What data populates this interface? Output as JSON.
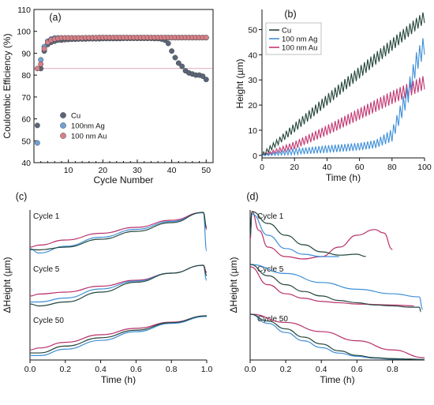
{
  "colors": {
    "cu": "#24463c",
    "ag": "#3f8fd8",
    "au": "#b8306a"
  },
  "chart_data": [
    {
      "id": "a",
      "type": "scatter",
      "panel_label": "(a)",
      "xlabel": "Cycle Number",
      "ylabel": "Coulombic Efficiency (%)",
      "xlim": [
        0,
        52
      ],
      "ylim": [
        40,
        110
      ],
      "xticks": [
        10,
        20,
        30,
        40,
        50
      ],
      "yticks": [
        40,
        50,
        60,
        70,
        80,
        90,
        100,
        110
      ],
      "legend_position": "bottom-left",
      "series": [
        {
          "name": "Cu",
          "color": "#5a6678",
          "x": [
            1,
            2,
            3,
            4,
            5,
            6,
            7,
            8,
            9,
            10,
            11,
            12,
            13,
            14,
            15,
            16,
            17,
            18,
            19,
            20,
            21,
            22,
            23,
            24,
            25,
            26,
            27,
            28,
            29,
            30,
            31,
            32,
            33,
            34,
            35,
            36,
            37,
            38,
            39,
            40,
            41,
            42,
            43,
            44,
            45,
            46,
            47,
            48,
            49,
            50
          ],
          "y": [
            57,
            83,
            91,
            94,
            95,
            95.5,
            96,
            96,
            96.2,
            96.3,
            96.4,
            96.4,
            96.5,
            96.5,
            96.5,
            96.6,
            96.6,
            96.6,
            96.6,
            96.7,
            96.7,
            96.7,
            96.7,
            96.7,
            96.7,
            96.8,
            96.8,
            96.8,
            96.8,
            96.8,
            96.8,
            96.8,
            96.8,
            96.8,
            96.7,
            96.7,
            96.5,
            96,
            94.5,
            91,
            88,
            85.5,
            84,
            82,
            81,
            80.5,
            80,
            80,
            79.5,
            78
          ]
        },
        {
          "name": "100nm Ag",
          "color": "#6fa3d8",
          "x": [
            1,
            2,
            3,
            4,
            5,
            6,
            7,
            8,
            9,
            10,
            11,
            12,
            13,
            14,
            15,
            16,
            17,
            18,
            19,
            20,
            21,
            22,
            23,
            24,
            25,
            26,
            27,
            28,
            29,
            30,
            31,
            32,
            33,
            34,
            35,
            36,
            37,
            38,
            39,
            40,
            41,
            42,
            43,
            44,
            45,
            46,
            47,
            48,
            49,
            50
          ],
          "y": [
            49,
            87,
            93,
            95.5,
            96.5,
            97,
            97,
            97,
            97,
            97,
            97,
            97,
            97,
            97,
            97,
            97,
            97.1,
            97.1,
            97.1,
            97.1,
            97.1,
            97.1,
            97.1,
            97.1,
            97.1,
            97.1,
            97.1,
            97.1,
            97.1,
            97.1,
            97.1,
            97.1,
            97.1,
            97.1,
            97.1,
            97.1,
            97.1,
            97.1,
            97.1,
            97.1,
            97.1,
            97.1,
            97.1,
            97.1,
            97.1,
            97.1,
            97.1,
            97.1,
            97.1,
            97.1
          ]
        },
        {
          "name": "100 nm Au",
          "color": "#d87f88",
          "x": [
            1,
            2,
            3,
            4,
            5,
            6,
            7,
            8,
            9,
            10,
            11,
            12,
            13,
            14,
            15,
            16,
            17,
            18,
            19,
            20,
            21,
            22,
            23,
            24,
            25,
            26,
            27,
            28,
            29,
            30,
            31,
            32,
            33,
            34,
            35,
            36,
            37,
            38,
            39,
            40,
            41,
            42,
            43,
            44,
            45,
            46,
            47,
            48,
            49,
            50
          ],
          "y": [
            83,
            85,
            92,
            95,
            96,
            96.5,
            96.8,
            97,
            97,
            97,
            97,
            97,
            97,
            97,
            97.1,
            97.1,
            97.1,
            97.1,
            97.2,
            97.2,
            97.2,
            97.2,
            97.2,
            97.2,
            97.2,
            97.2,
            97.2,
            97.2,
            97.2,
            97.2,
            97.2,
            97.2,
            97.2,
            97.2,
            97.2,
            97.2,
            97.2,
            97.2,
            97.2,
            97.2,
            97.2,
            97.2,
            97.2,
            97.2,
            97.2,
            97.2,
            97.2,
            97.2,
            97.2,
            97.2
          ]
        }
      ]
    },
    {
      "id": "b",
      "type": "line",
      "panel_label": "(b)",
      "xlabel": "Time (h)",
      "ylabel": "Height (µm)",
      "xlim": [
        0,
        100
      ],
      "ylim": [
        -1,
        58
      ],
      "xticks": [
        0,
        20,
        40,
        60,
        80,
        100
      ],
      "yticks": [
        0,
        10,
        20,
        30,
        40,
        50
      ],
      "legend_position": "top-left",
      "series": [
        {
          "name": "Cu",
          "color": "#24463c",
          "period": 2,
          "x": [
            0,
            20,
            40,
            60,
            80,
            100
          ],
          "mid": [
            0,
            11,
            22,
            33,
            44,
            55
          ],
          "amp": [
            0.8,
            1.8,
            2.2,
            2.4,
            2.4,
            2.4
          ]
        },
        {
          "name": "100 nm Ag",
          "color": "#3f8fd8",
          "period": 2,
          "x": [
            0,
            20,
            40,
            60,
            70,
            80,
            90,
            95,
            100
          ],
          "mid": [
            0,
            1.5,
            2.5,
            3.5,
            4.5,
            8,
            25,
            37,
            44
          ],
          "amp": [
            0.2,
            1.2,
            1.5,
            1.5,
            1.6,
            2.5,
            4,
            4,
            4
          ]
        },
        {
          "name": "100 nm Au",
          "color": "#c23873",
          "period": 2,
          "x": [
            0,
            20,
            40,
            60,
            80,
            100
          ],
          "mid": [
            0,
            4,
            10,
            16.5,
            23,
            29
          ],
          "amp": [
            0.2,
            1.5,
            2,
            2.3,
            2.6,
            2.8
          ]
        }
      ]
    },
    {
      "id": "c",
      "type": "line",
      "panel_label": "(c)",
      "xlabel": "Time (h)",
      "ylabel": "ΔHeight (µm)",
      "xlim": [
        0,
        1
      ],
      "xticks": [
        0.0,
        0.2,
        0.4,
        0.6,
        0.8,
        1.0
      ],
      "subplots": [
        {
          "label": "Cycle 1",
          "series": [
            {
              "name": "Cu",
              "x": [
                0,
                0.05,
                0.2,
                0.4,
                0.6,
                0.8,
                0.98,
                1.0
              ],
              "y": [
                0.04,
                0.03,
                0.1,
                0.3,
                0.5,
                0.72,
                0.98,
                0.6
              ]
            },
            {
              "name": "100 nm Ag",
              "x": [
                0,
                0.05,
                0.2,
                0.4,
                0.6,
                0.8,
                0.98,
                1.0
              ],
              "y": [
                0.06,
                -0.05,
                0.12,
                0.35,
                0.55,
                0.75,
                0.97,
                0.0
              ]
            },
            {
              "name": "100 nm Au",
              "x": [
                0,
                0.05,
                0.2,
                0.4,
                0.6,
                0.8,
                0.98,
                1.0
              ],
              "y": [
                0.1,
                0.15,
                0.28,
                0.45,
                0.6,
                0.78,
                0.98,
                0.55
              ]
            }
          ]
        },
        {
          "label": "Cycle 5",
          "series": [
            {
              "name": "Cu",
              "x": [
                0,
                0.05,
                0.2,
                0.4,
                0.6,
                0.8,
                0.98,
                1.0
              ],
              "y": [
                0.0,
                -0.05,
                0.05,
                0.3,
                0.55,
                0.78,
                0.98,
                0.72
              ]
            },
            {
              "name": "100 nm Ag",
              "x": [
                0,
                0.05,
                0.2,
                0.4,
                0.6,
                0.8,
                0.98,
                1.0
              ],
              "y": [
                0.05,
                0.05,
                0.15,
                0.38,
                0.58,
                0.78,
                0.98,
                0.6
              ]
            },
            {
              "name": "100 nm Au",
              "x": [
                0,
                0.05,
                0.2,
                0.4,
                0.6,
                0.8,
                0.98,
                1.0
              ],
              "y": [
                0.2,
                0.25,
                0.3,
                0.45,
                0.6,
                0.78,
                0.98,
                0.8
              ]
            }
          ]
        },
        {
          "label": "Cycle 50",
          "series": [
            {
              "name": "Cu",
              "x": [
                0,
                0.05,
                0.2,
                0.4,
                0.6,
                0.8,
                1.0
              ],
              "y": [
                0.02,
                0.02,
                0.2,
                0.42,
                0.62,
                0.82,
                1.0
              ]
            },
            {
              "name": "100 nm Ag",
              "x": [
                0,
                0.05,
                0.2,
                0.4,
                0.6,
                0.8,
                1.0
              ],
              "y": [
                -0.05,
                -0.05,
                0.12,
                0.35,
                0.58,
                0.8,
                0.98
              ]
            },
            {
              "name": "100 nm Au",
              "x": [
                0,
                0.05,
                0.2,
                0.4,
                0.6,
                0.8,
                1.0
              ],
              "y": [
                0.1,
                0.15,
                0.3,
                0.5,
                0.67,
                0.83,
                1.0
              ]
            }
          ]
        }
      ]
    },
    {
      "id": "d",
      "type": "line",
      "panel_label": "(d)",
      "xlabel": "Time (h)",
      "ylabel": "ΔHeight (µm)",
      "xlim": [
        0,
        0.98
      ],
      "xticks": [
        0.0,
        0.2,
        0.4,
        0.6,
        0.8
      ],
      "subplots": [
        {
          "label": "Cycle 1",
          "series": [
            {
              "name": "Cu",
              "x": [
                0,
                0.01,
                0.1,
                0.2,
                0.3,
                0.4,
                0.5,
                0.6,
                0.65
              ],
              "y": [
                0.5,
                1.0,
                0.75,
                0.5,
                0.3,
                0.15,
                0.08,
                0.1,
                0.05
              ]
            },
            {
              "name": "100 nm Ag",
              "x": [
                0,
                0.01,
                0.1,
                0.2,
                0.3,
                0.4,
                0.5
              ],
              "y": [
                0.5,
                0.95,
                0.5,
                0.22,
                0.1,
                0.05,
                0.05
              ]
            },
            {
              "name": "100 nm Au",
              "x": [
                0,
                0.01,
                0.05,
                0.1,
                0.2,
                0.3,
                0.4,
                0.5,
                0.6,
                0.7,
                0.75,
                0.8
              ],
              "y": [
                0.4,
                1.0,
                0.6,
                0.25,
                0.05,
                0.0,
                0.05,
                0.25,
                0.5,
                0.62,
                0.55,
                0.2
              ]
            }
          ]
        },
        {
          "label": "Cycle 5",
          "series": [
            {
              "name": "Cu",
              "x": [
                0,
                0.1,
                0.2,
                0.3,
                0.4,
                0.5,
                0.6,
                0.7,
                0.8,
                0.9,
                0.95,
                0.96
              ],
              "y": [
                1.0,
                0.75,
                0.55,
                0.4,
                0.3,
                0.2,
                0.15,
                0.1,
                0.08,
                0.05,
                0.05,
                -0.05
              ]
            },
            {
              "name": "100 nm Ag",
              "x": [
                0,
                0.2,
                0.4,
                0.6,
                0.8,
                0.95,
                0.97
              ],
              "y": [
                1.0,
                0.8,
                0.6,
                0.45,
                0.35,
                0.28,
                0.0
              ]
            },
            {
              "name": "100 nm Au",
              "x": [
                0,
                0.1,
                0.2,
                0.3,
                0.4,
                0.5,
                0.6,
                0.8,
                0.92
              ],
              "y": [
                0.95,
                0.55,
                0.35,
                0.25,
                0.18,
                0.15,
                0.12,
                0.1,
                0.08
              ]
            }
          ]
        },
        {
          "label": "Cycle 50",
          "series": [
            {
              "name": "Cu",
              "x": [
                0,
                0.1,
                0.2,
                0.3,
                0.4,
                0.5,
                0.6,
                0.7,
                0.8,
                0.9,
                0.98
              ],
              "y": [
                1.0,
                0.85,
                0.68,
                0.5,
                0.35,
                0.2,
                0.1,
                0.05,
                0.03,
                0.02,
                0.01
              ]
            },
            {
              "name": "100 nm Ag",
              "x": [
                0,
                0.1,
                0.2,
                0.3,
                0.4,
                0.5,
                0.6,
                0.7,
                0.8,
                0.9,
                0.98
              ],
              "y": [
                1.0,
                0.8,
                0.6,
                0.42,
                0.27,
                0.15,
                0.08,
                0.04,
                0.02,
                0.02,
                0.01
              ]
            },
            {
              "name": "100 nm Au",
              "x": [
                0,
                0.2,
                0.4,
                0.6,
                0.8,
                0.98
              ],
              "y": [
                1.0,
                0.82,
                0.62,
                0.42,
                0.22,
                0.05
              ]
            }
          ]
        }
      ]
    }
  ]
}
